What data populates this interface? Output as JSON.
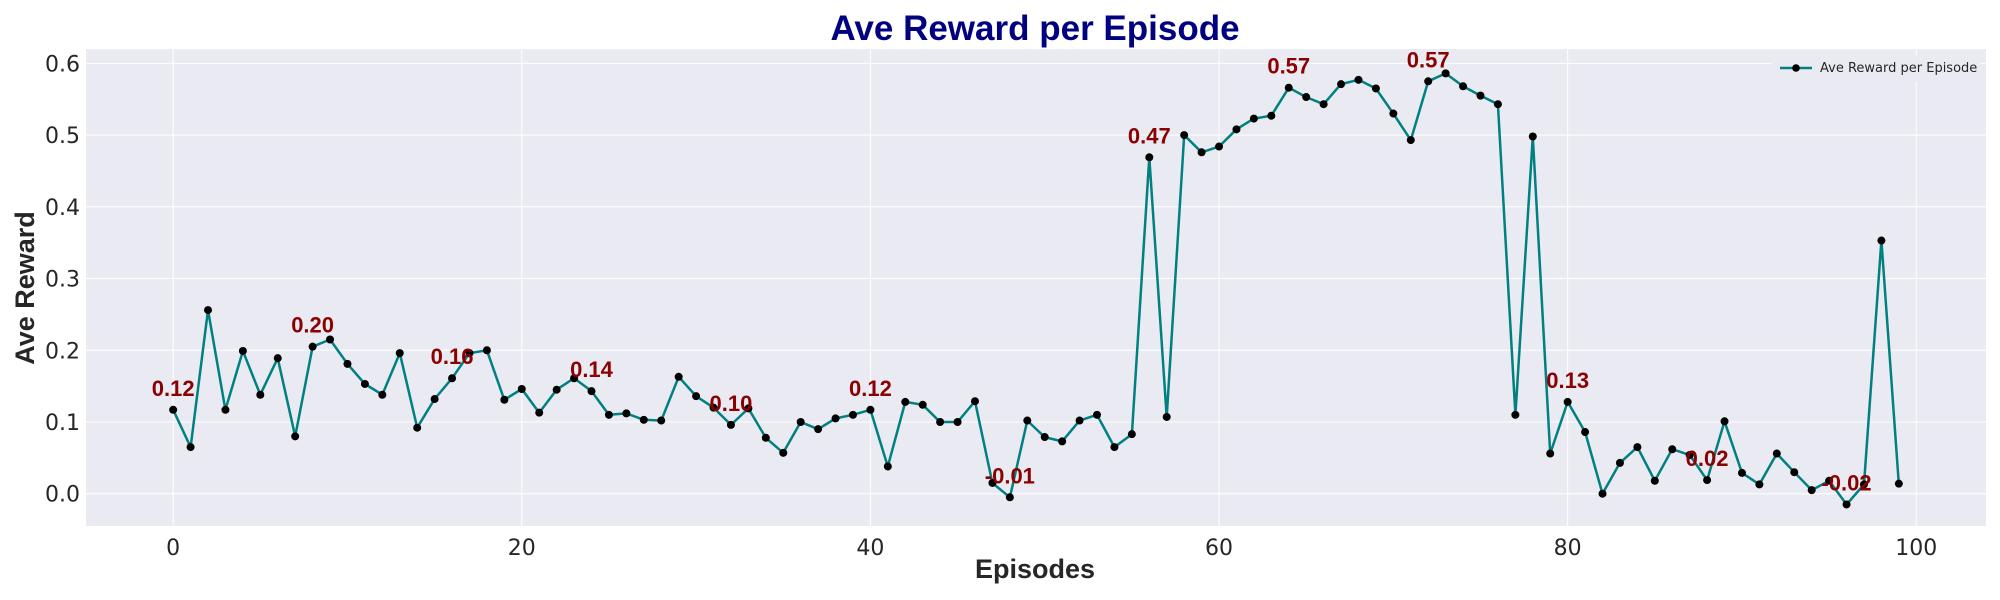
{
  "chart_data": {
    "type": "line",
    "title": "Ave Reward per Episode",
    "xlabel": "Episodes",
    "ylabel": "Ave Reward",
    "xlim": [
      -5,
      104
    ],
    "ylim": [
      -0.045,
      0.62
    ],
    "xticks": [
      0,
      20,
      40,
      60,
      80,
      100
    ],
    "yticks": [
      0.0,
      0.1,
      0.2,
      0.3,
      0.4,
      0.5,
      0.6
    ],
    "grid": true,
    "legend_position": "top-right",
    "series": [
      {
        "name": "Ave Reward per Episode",
        "color": "#008080",
        "marker_color": "#000000",
        "x": [
          0,
          1,
          2,
          3,
          4,
          5,
          6,
          7,
          8,
          9,
          10,
          11,
          12,
          13,
          14,
          15,
          16,
          17,
          18,
          19,
          20,
          21,
          22,
          23,
          24,
          25,
          26,
          27,
          28,
          29,
          30,
          31,
          32,
          33,
          34,
          35,
          36,
          37,
          38,
          39,
          40,
          41,
          42,
          43,
          44,
          45,
          46,
          47,
          48,
          49,
          50,
          51,
          52,
          53,
          54,
          55,
          56,
          57,
          58,
          59,
          60,
          61,
          62,
          63,
          64,
          65,
          66,
          67,
          68,
          69,
          70,
          71,
          72,
          73,
          74,
          75,
          76,
          77,
          78,
          79,
          80,
          81,
          82,
          83,
          84,
          85,
          86,
          87,
          88,
          89,
          90,
          91,
          92,
          93,
          94,
          95,
          96,
          97,
          98,
          99
        ],
        "y": [
          0.117,
          0.065,
          0.256,
          0.117,
          0.199,
          0.138,
          0.189,
          0.08,
          0.205,
          0.215,
          0.181,
          0.153,
          0.138,
          0.196,
          0.092,
          0.132,
          0.161,
          0.196,
          0.2,
          0.131,
          0.146,
          0.113,
          0.145,
          0.161,
          0.143,
          0.11,
          0.112,
          0.103,
          0.102,
          0.163,
          0.136,
          0.12,
          0.096,
          0.119,
          0.078,
          0.057,
          0.1,
          0.09,
          0.105,
          0.11,
          0.117,
          0.038,
          0.128,
          0.124,
          0.1,
          0.1,
          0.129,
          0.015,
          -0.005,
          0.102,
          0.079,
          0.073,
          0.102,
          0.11,
          0.065,
          0.083,
          0.469,
          0.107,
          0.5,
          0.476,
          0.484,
          0.508,
          0.523,
          0.527,
          0.566,
          0.553,
          0.543,
          0.571,
          0.577,
          0.565,
          0.53,
          0.493,
          0.575,
          0.586,
          0.568,
          0.555,
          0.543,
          0.11,
          0.498,
          0.056,
          0.128,
          0.086,
          0.0,
          0.043,
          0.065,
          0.018,
          0.062,
          0.054,
          0.019,
          0.101,
          0.029,
          0.013,
          0.056,
          0.03,
          0.005,
          0.018,
          -0.015,
          0.013,
          0.353,
          0.014
        ]
      }
    ],
    "annotations": [
      {
        "x": 0,
        "y": 0.117,
        "text": "0.12"
      },
      {
        "x": 8,
        "y": 0.205,
        "text": "0.20"
      },
      {
        "x": 16,
        "y": 0.161,
        "text": "0.16"
      },
      {
        "x": 24,
        "y": 0.143,
        "text": "0.14"
      },
      {
        "x": 32,
        "y": 0.096,
        "text": "0.10"
      },
      {
        "x": 40,
        "y": 0.117,
        "text": "0.12"
      },
      {
        "x": 48,
        "y": -0.005,
        "text": "-0.01"
      },
      {
        "x": 56,
        "y": 0.469,
        "text": "0.47"
      },
      {
        "x": 64,
        "y": 0.566,
        "text": "0.57"
      },
      {
        "x": 72,
        "y": 0.575,
        "text": "0.57"
      },
      {
        "x": 80,
        "y": 0.128,
        "text": "0.13"
      },
      {
        "x": 88,
        "y": 0.019,
        "text": "0.02"
      },
      {
        "x": 96,
        "y": -0.015,
        "text": "-0.02"
      }
    ]
  }
}
